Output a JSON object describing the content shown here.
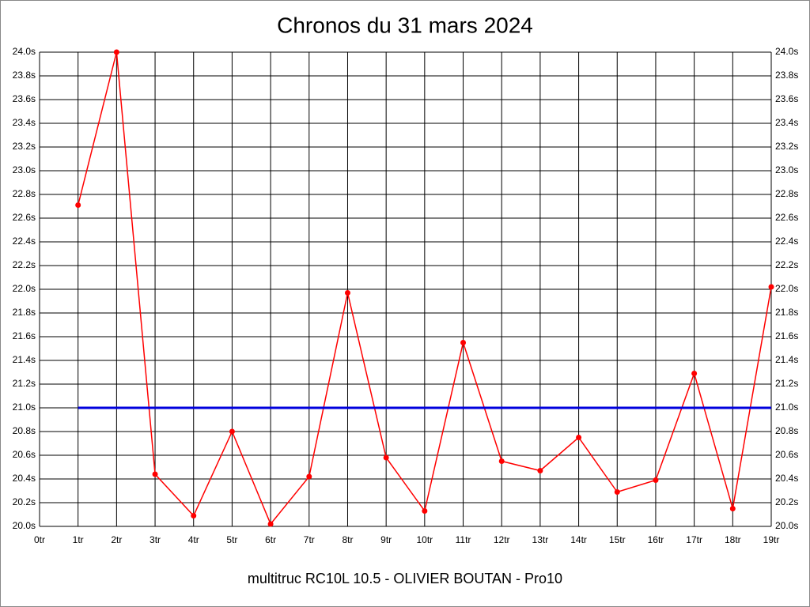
{
  "chart_data": {
    "type": "line",
    "title": "Chronos du 31 mars 2024",
    "subtitle": "multitruc RC10L 10.5 - OLIVIER BOUTAN - Pro10",
    "categories": [
      "0tr",
      "1tr",
      "2tr",
      "3tr",
      "4tr",
      "5tr",
      "6tr",
      "7tr",
      "8tr",
      "9tr",
      "10tr",
      "11tr",
      "12tr",
      "13tr",
      "14tr",
      "15tr",
      "16tr",
      "17tr",
      "18tr",
      "19tr"
    ],
    "series": [
      {
        "color": "#ff0000",
        "markers": true,
        "values": [
          null,
          22.71,
          24.0,
          20.44,
          20.09,
          20.8,
          20.02,
          20.42,
          21.97,
          20.58,
          20.13,
          21.55,
          20.55,
          20.47,
          20.75,
          20.29,
          20.39,
          21.29,
          20.15,
          22.02
        ]
      },
      {
        "color": "#0000dd",
        "markers": false,
        "values": [
          null,
          21,
          21,
          21,
          21,
          21,
          21,
          21,
          21,
          21,
          21,
          21,
          21,
          21,
          21,
          21,
          21,
          21,
          21,
          21
        ]
      }
    ],
    "ylim": [
      20,
      24
    ],
    "yticks": [
      {
        "value": 20,
        "label": "20.0s"
      },
      {
        "value": 20.2,
        "label": "20.2s"
      },
      {
        "value": 20.4,
        "label": "20.4s"
      },
      {
        "value": 20.6,
        "label": "20.6s"
      },
      {
        "value": 20.8,
        "label": "20.8s"
      },
      {
        "value": 21,
        "label": "21.0s"
      },
      {
        "value": 21.2,
        "label": "21.2s"
      },
      {
        "value": 21.4,
        "label": "21.4s"
      },
      {
        "value": 21.6,
        "label": "21.6s"
      },
      {
        "value": 21.8,
        "label": "21.8s"
      },
      {
        "value": 22,
        "label": "22.0s"
      },
      {
        "value": 22.2,
        "label": "22.2s"
      },
      {
        "value": 22.4,
        "label": "22.4s"
      },
      {
        "value": 22.6,
        "label": "22.6s"
      },
      {
        "value": 22.8,
        "label": "22.8s"
      },
      {
        "value": 23,
        "label": "23.0s"
      },
      {
        "value": 23.2,
        "label": "23.2s"
      },
      {
        "value": 23.4,
        "label": "23.4s"
      },
      {
        "value": 23.6,
        "label": "23.6s"
      },
      {
        "value": 23.8,
        "label": "23.8s"
      },
      {
        "value": 24,
        "label": "24.0s"
      }
    ],
    "grid": true
  }
}
